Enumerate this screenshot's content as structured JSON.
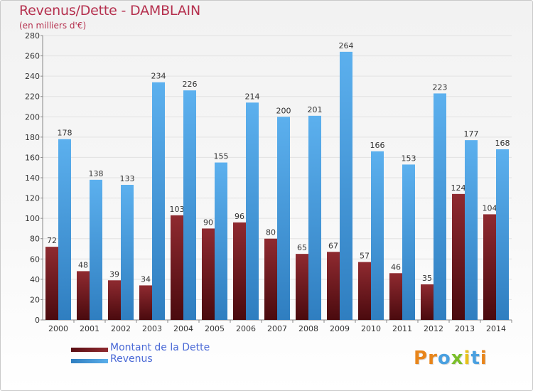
{
  "title": "Revenus/Dette - DAMBLAIN",
  "subtitle": "(en milliers d'€)",
  "colors": {
    "title": "#b5304e",
    "dette": "#7a1f23",
    "revenus": "#4aa0e0",
    "legend_text": "#4a69d6"
  },
  "legend": [
    {
      "label": "Montant de la Dette",
      "color": "#7a1f23"
    },
    {
      "label": "Revenus",
      "color": "#4aa0e0"
    }
  ],
  "logo": {
    "letters": [
      "P",
      "r",
      "o",
      "x",
      "i",
      "t",
      "i"
    ],
    "colors": [
      "#e8851b",
      "#e8851b",
      "#4aa0e0",
      "#7bbf2a",
      "#e8c21b",
      "#4aa0e0",
      "#e8851b"
    ]
  },
  "chart_data": {
    "type": "bar",
    "categories": [
      "2000",
      "2001",
      "2002",
      "2003",
      "2004",
      "2005",
      "2006",
      "2007",
      "2008",
      "2009",
      "2010",
      "2011",
      "2012",
      "2013",
      "2014"
    ],
    "series": [
      {
        "name": "Montant de la Dette",
        "values": [
          72,
          48,
          39,
          34,
          103,
          90,
          96,
          80,
          65,
          67,
          57,
          46,
          35,
          124,
          104
        ]
      },
      {
        "name": "Revenus",
        "values": [
          178,
          138,
          133,
          234,
          226,
          155,
          214,
          200,
          201,
          264,
          166,
          153,
          223,
          177,
          168
        ]
      }
    ],
    "ylim": [
      0,
      280
    ],
    "yticks": [
      0,
      20,
      40,
      60,
      80,
      100,
      120,
      140,
      160,
      180,
      200,
      220,
      240,
      260,
      280
    ],
    "grid": true,
    "legend_position": "bottom-left"
  }
}
